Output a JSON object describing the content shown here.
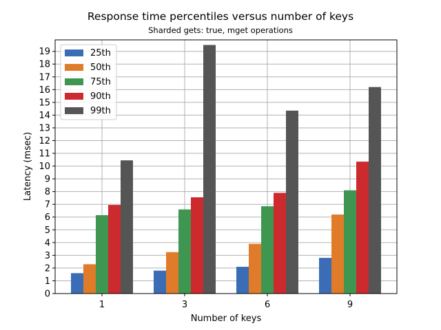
{
  "chart_data": {
    "type": "bar",
    "title": "Response time percentiles versus number of keys",
    "subtitle": "Sharded gets: true, mget operations",
    "xlabel": "Number of keys",
    "ylabel": "Latency (msec)",
    "categories": [
      "1",
      "3",
      "6",
      "9"
    ],
    "ylim": [
      0,
      19.9
    ],
    "yticks": [
      0,
      1,
      2,
      3,
      4,
      5,
      6,
      7,
      8,
      9,
      10,
      11,
      12,
      13,
      14,
      15,
      16,
      17,
      18,
      19
    ],
    "grid": true,
    "legend_position": "top-left",
    "series": [
      {
        "name": "25th",
        "color": "#3a6db5",
        "values": [
          1.6,
          1.8,
          2.1,
          2.8
        ]
      },
      {
        "name": "50th",
        "color": "#e07b2a",
        "values": [
          2.3,
          3.25,
          3.9,
          6.2
        ]
      },
      {
        "name": "75th",
        "color": "#3f9651",
        "values": [
          6.15,
          6.6,
          6.85,
          8.1
        ]
      },
      {
        "name": "90th",
        "color": "#cc2a2e",
        "values": [
          6.95,
          7.55,
          7.9,
          10.35
        ]
      },
      {
        "name": "99th",
        "color": "#555555",
        "values": [
          10.45,
          19.5,
          14.35,
          16.2
        ]
      }
    ]
  }
}
